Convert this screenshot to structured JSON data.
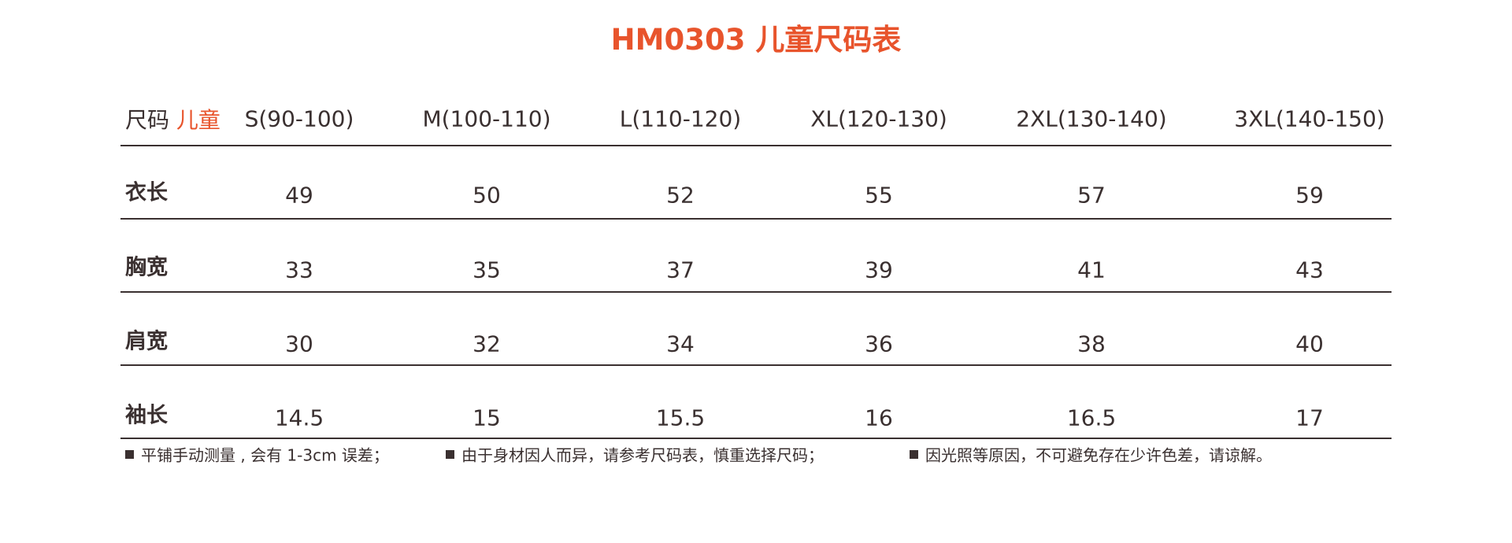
{
  "title": "HM0303 儿童尺码表",
  "table": {
    "corner": [
      "尺码",
      "儿童"
    ],
    "columns": [
      "S(90-100)",
      "M(100-110)",
      "L(110-120)",
      "XL(120-130)",
      "2XL(130-140)",
      "3XL(140-150)"
    ],
    "rows": [
      {
        "label": "衣长",
        "values": [
          49,
          50,
          52,
          55,
          57,
          59
        ]
      },
      {
        "label": "胸宽",
        "values": [
          33,
          35,
          37,
          39,
          41,
          43
        ]
      },
      {
        "label": "肩宽",
        "values": [
          30,
          32,
          34,
          36,
          38,
          40
        ]
      },
      {
        "label": "袖长",
        "values": [
          14.5,
          15,
          15.5,
          16,
          16.5,
          17
        ]
      }
    ]
  },
  "notes": [
    "平铺手动测量 , 会有 1-3cm 误差；",
    "由于身材因人而异，请参考尺码表，慎重选择尺码；",
    "因光照等原因，不可避免存在少许色差，请谅解。"
  ]
}
